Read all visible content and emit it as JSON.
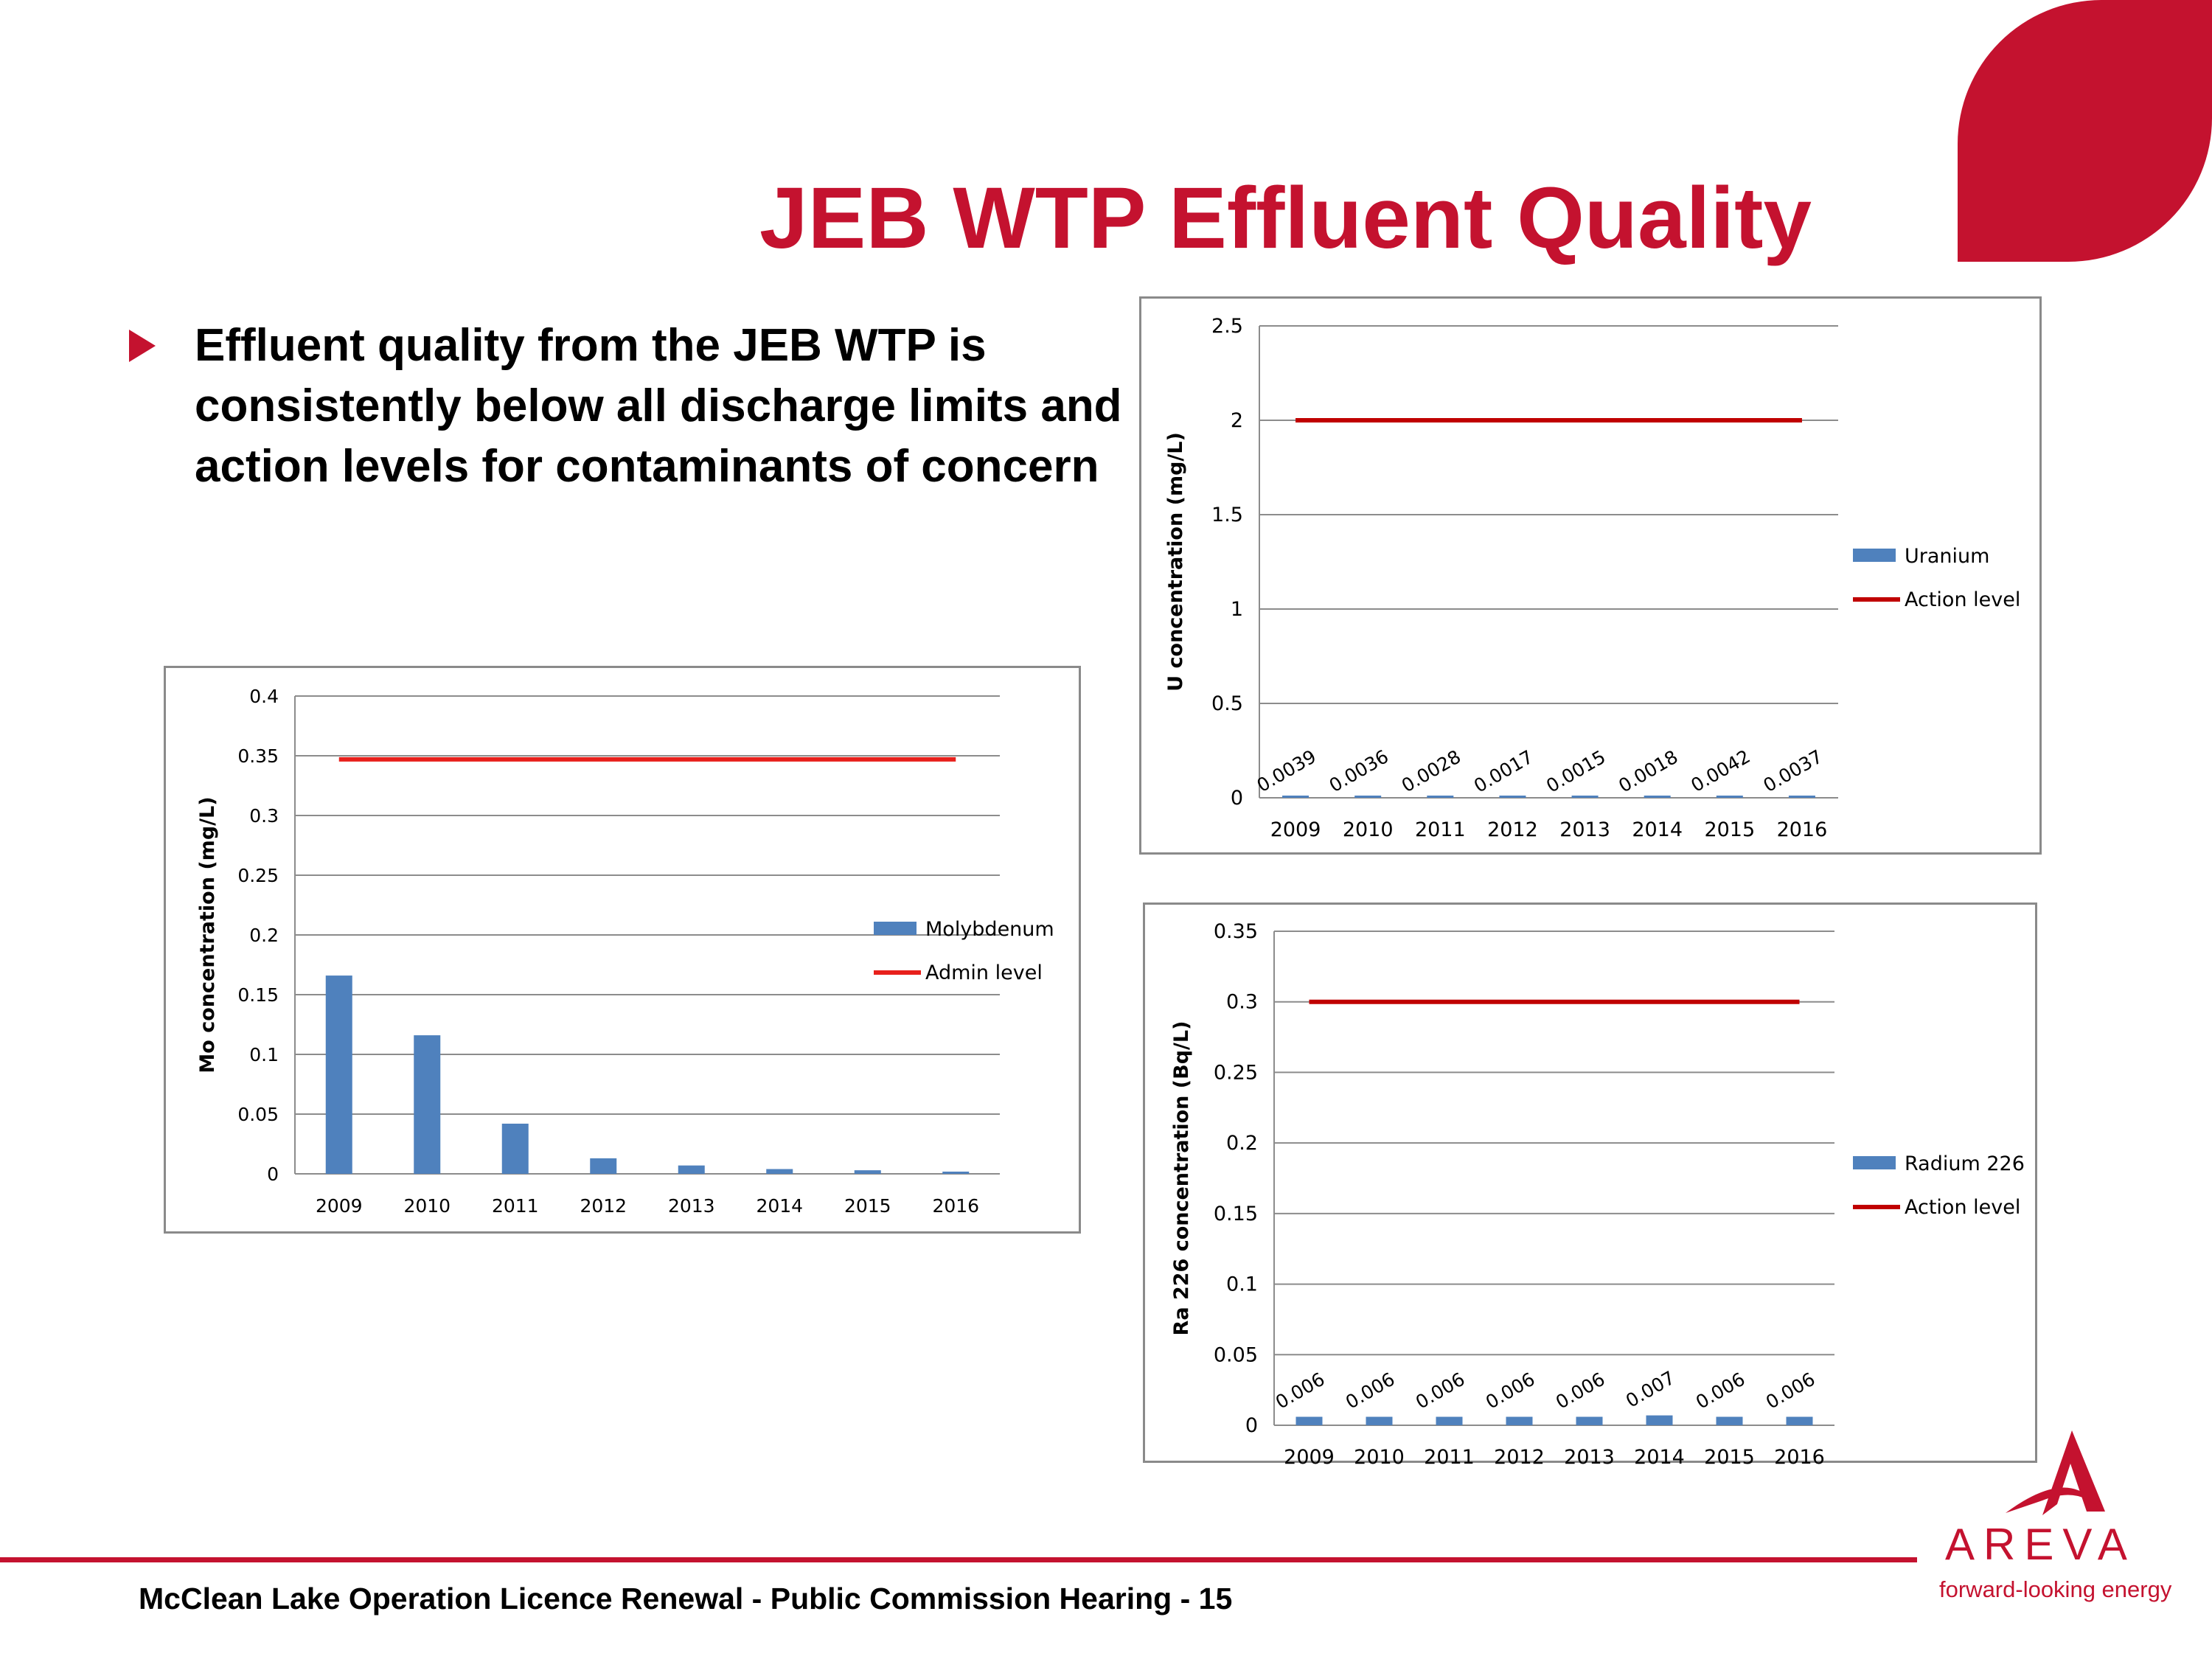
{
  "slide": {
    "title": "JEB WTP Effluent Quality",
    "bullet": "Effluent quality from the JEB WTP is consistently below all discharge limits and action levels for contaminants of concern",
    "footer": "McClean Lake Operation Licence Renewal - Public Commission Hearing - 15",
    "logo_text": "AREVA",
    "tagline": "forward-looking energy",
    "brand_color": "#c4122f"
  },
  "chart_data": [
    {
      "id": "mo",
      "type": "bar",
      "categories": [
        "2009",
        "2010",
        "2011",
        "2012",
        "2013",
        "2014",
        "2015",
        "2016"
      ],
      "series": [
        {
          "name": "Molybdenum",
          "type": "bar",
          "values": [
            0.166,
            0.116,
            0.042,
            0.013,
            0.007,
            0.004,
            0.003,
            0.001
          ],
          "color": "#4f81bd"
        },
        {
          "name": "Admin level",
          "type": "line",
          "values": [
            0.347,
            0.347,
            0.347,
            0.347,
            0.347,
            0.347,
            0.347,
            0.347
          ],
          "color": "#e8201c"
        }
      ],
      "data_labels": [],
      "ylabel": "Mo concentration (mg/L)",
      "ylim": [
        0,
        0.4
      ],
      "yticks": [
        "0",
        "0.05",
        "0.1",
        "0.15",
        "0.2",
        "0.25",
        "0.3",
        "0.35",
        "0.4"
      ],
      "grid": true,
      "legend": "right"
    },
    {
      "id": "u",
      "type": "bar",
      "categories": [
        "2009",
        "2010",
        "2011",
        "2012",
        "2013",
        "2014",
        "2015",
        "2016"
      ],
      "series": [
        {
          "name": "Uranium",
          "type": "bar",
          "values": [
            0.0039,
            0.0036,
            0.0028,
            0.0017,
            0.0015,
            0.0018,
            0.0042,
            0.0037
          ],
          "color": "#4f81bd"
        },
        {
          "name": "Action level",
          "type": "line",
          "values": [
            2,
            2,
            2,
            2,
            2,
            2,
            2,
            2
          ],
          "color": "#c00000"
        }
      ],
      "data_labels": [
        "0.0039",
        "0.0036",
        "0.0028",
        "0.0017",
        "0.0015",
        "0.0018",
        "0.0042",
        "0.0037"
      ],
      "ylabel": "U concentration (mg/L)",
      "ylim": [
        0,
        2.5
      ],
      "yticks": [
        "0",
        "0.5",
        "1",
        "1.5",
        "2",
        "2.5"
      ],
      "grid": true,
      "legend": "right"
    },
    {
      "id": "ra",
      "type": "bar",
      "categories": [
        "2009",
        "2010",
        "2011",
        "2012",
        "2013",
        "2014",
        "2015",
        "2016"
      ],
      "series": [
        {
          "name": "Radium 226",
          "type": "bar",
          "values": [
            0.006,
            0.006,
            0.006,
            0.006,
            0.006,
            0.007,
            0.006,
            0.006
          ],
          "color": "#4f81bd"
        },
        {
          "name": "Action level",
          "type": "line",
          "values": [
            0.3,
            0.3,
            0.3,
            0.3,
            0.3,
            0.3,
            0.3,
            0.3
          ],
          "color": "#c00000"
        }
      ],
      "data_labels": [
        "0.006",
        "0.006",
        "0.006",
        "0.006",
        "0.006",
        "0.007",
        "0.006",
        "0.006"
      ],
      "ylabel": "Ra 226 concentration (Bq/L)",
      "ylim": [
        0,
        0.35
      ],
      "yticks": [
        "0",
        "0.05",
        "0.1",
        "0.15",
        "0.2",
        "0.25",
        "0.3",
        "0.35"
      ],
      "grid": true,
      "legend": "right"
    }
  ]
}
